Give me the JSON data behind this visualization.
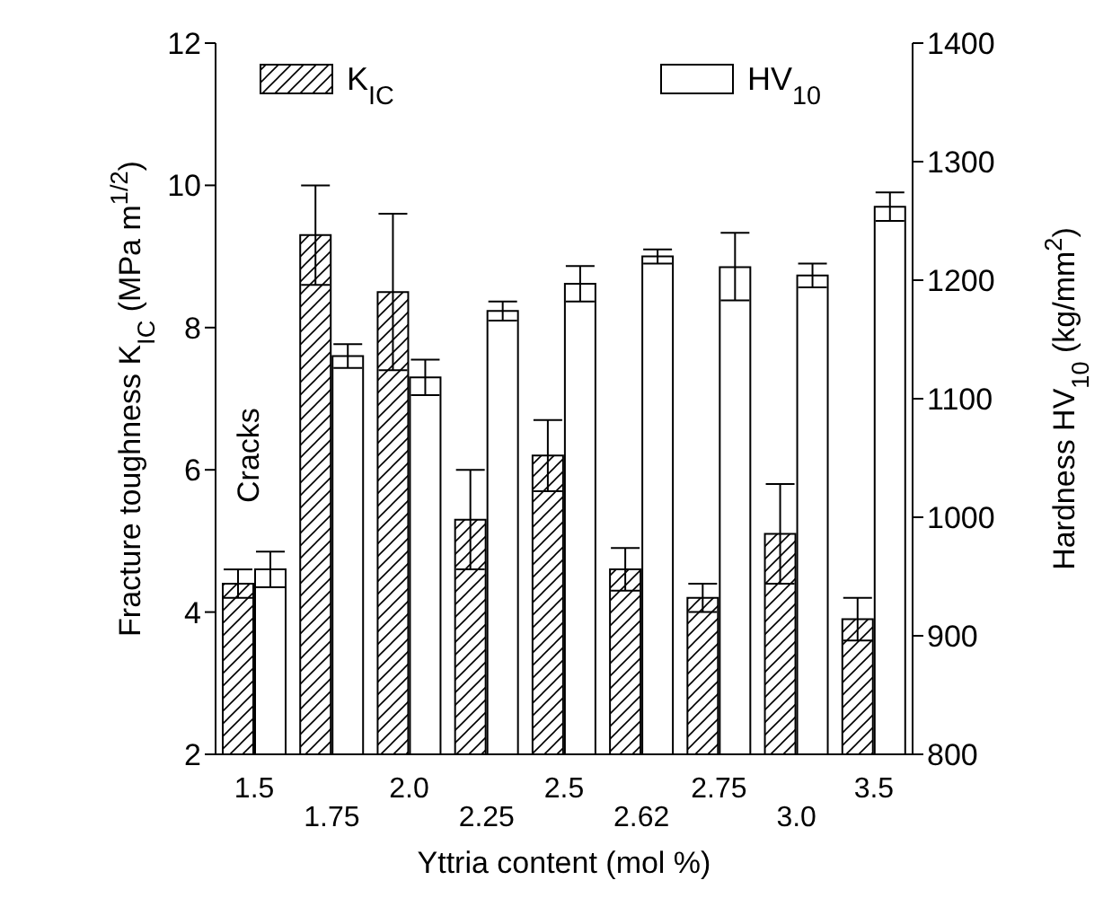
{
  "chart_data": {
    "type": "bar",
    "xlabel": "Yttria content (mol %)",
    "ylabel": "Fracture toughness K$_{IC}$  (MPa m$^{1/2}$)",
    "y2label": "Hardness HV$_{10}$ (kg/mm$^{2}$)",
    "categories": [
      "1.5",
      "1.75",
      "2.0",
      "2.25",
      "2.5",
      "2.62",
      "2.75",
      "3.0",
      "3.5"
    ],
    "series": [
      {
        "name": "K$_{IC}$",
        "color": "#000000",
        "values": [
          4.4,
          9.3,
          8.5,
          5.3,
          6.2,
          4.6,
          4.2,
          5.1,
          3.9
        ],
        "errors": [
          0.2,
          [
            8.6,
            10.0
          ],
          [
            7.4,
            9.6
          ],
          [
            4.6,
            6.0
          ],
          [
            5.7,
            6.7
          ],
          0.3,
          0.2,
          [
            4.4,
            5.8
          ],
          0.3
        ]
      },
      {
        "name": "HV$_{10}$",
        "color": "#ffffff",
        "axis": "y2",
        "values": [
          956,
          1136,
          1118,
          1174,
          1197,
          1220,
          1211,
          1204,
          1262
        ],
        "errors": [
          15,
          10,
          15,
          8,
          15,
          6,
          [
            1183,
            1240
          ],
          10,
          12
        ]
      }
    ],
    "ylim": [
      2,
      12
    ],
    "yticks": [
      2,
      4,
      6,
      8,
      10,
      12
    ],
    "y2lim": [
      800,
      1400
    ],
    "y2ticks": [
      800,
      900,
      1000,
      1100,
      1200,
      1300,
      1400
    ],
    "annotations": [
      "Cracks"
    ],
    "legend": "top"
  }
}
